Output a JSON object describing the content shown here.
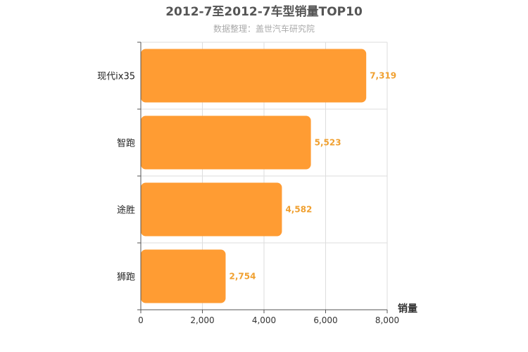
{
  "chart_data": {
    "type": "bar",
    "orientation": "horizontal",
    "title": "2012-7至2012-7车型销量TOP10",
    "subtitle": "数据整理：盖世汽车研究院",
    "categories": [
      "现代ix35",
      "智跑",
      "途胜",
      "狮跑"
    ],
    "values": [
      7319,
      5523,
      4582,
      2754
    ],
    "value_labels": [
      "7,319",
      "5,523",
      "4,582",
      "2,754"
    ],
    "xlabel": "销量",
    "xlim": [
      0,
      8000
    ],
    "xticks": [
      0,
      2000,
      4000,
      6000,
      8000
    ],
    "xtick_labels": [
      "0",
      "2,000",
      "4,000",
      "6,000",
      "8,000"
    ],
    "grid": true,
    "bar_color": "#ff9c33",
    "value_label_color": "#f0a030"
  }
}
